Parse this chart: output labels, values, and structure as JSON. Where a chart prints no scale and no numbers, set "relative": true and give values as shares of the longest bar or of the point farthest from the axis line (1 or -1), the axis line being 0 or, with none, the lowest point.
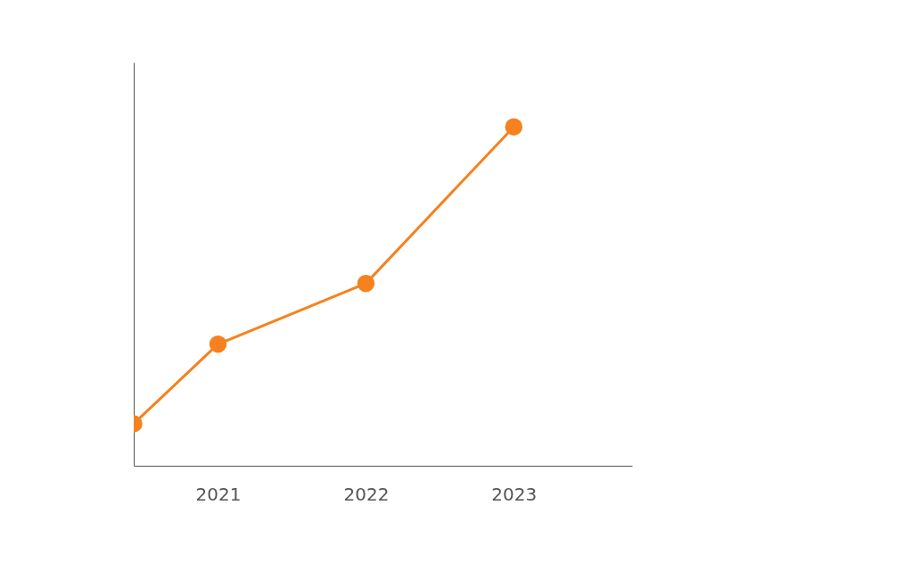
{
  "chart_data": {
    "type": "line",
    "relative": true,
    "x": [
      2020.43,
      2021,
      2022,
      2023
    ],
    "xlim": [
      2020.43,
      2023.8
    ],
    "xticks": [
      2021,
      2022,
      2023
    ],
    "series": [
      {
        "color": "#f5821f",
        "values": [
          0.124,
          0.359,
          0.538,
          1
        ]
      }
    ],
    "marker": "circle",
    "line_style": "solid",
    "legend": false,
    "grid": false
  }
}
